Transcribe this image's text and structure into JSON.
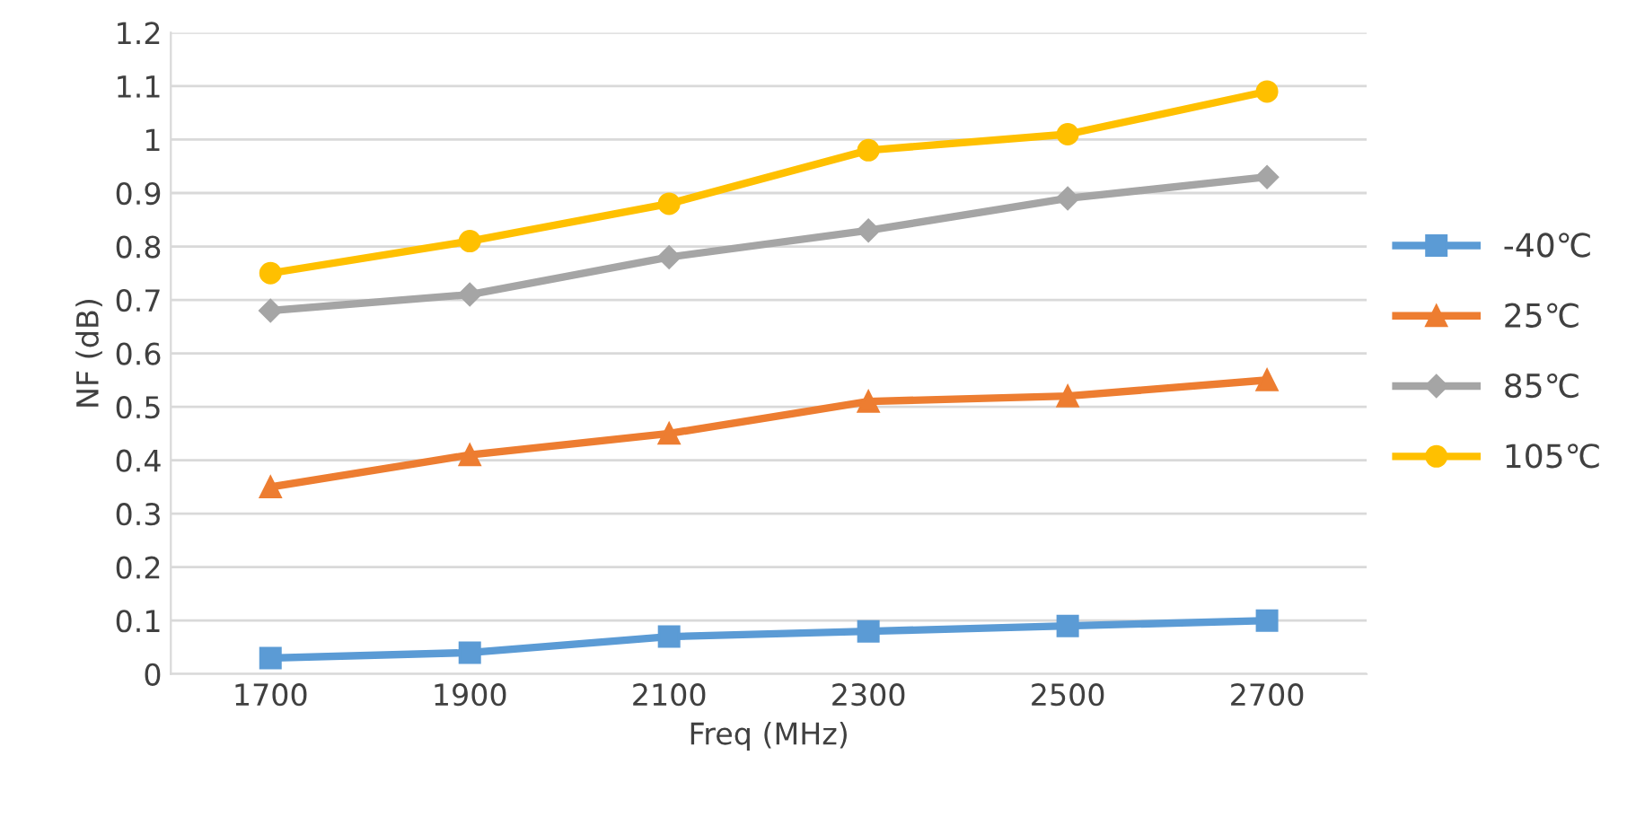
{
  "chart_data": {
    "type": "line",
    "xlabel": "Freq (MHz)",
    "ylabel": "NF (dB)",
    "categories": [
      "1700",
      "1900",
      "2100",
      "2300",
      "2500",
      "2700"
    ],
    "series": [
      {
        "name": "-40℃",
        "color": "#5b9bd5",
        "marker": "square",
        "values": [
          0.03,
          0.04,
          0.07,
          0.08,
          0.09,
          0.1
        ]
      },
      {
        "name": "25℃",
        "color": "#ed7d31",
        "marker": "triangle",
        "values": [
          0.35,
          0.41,
          0.45,
          0.51,
          0.52,
          0.55
        ]
      },
      {
        "name": "85℃",
        "color": "#a5a5a5",
        "marker": "diamond",
        "values": [
          0.68,
          0.71,
          0.78,
          0.83,
          0.89,
          0.93
        ]
      },
      {
        "name": "105℃",
        "color": "#ffc000",
        "marker": "circle",
        "values": [
          0.75,
          0.81,
          0.88,
          0.98,
          1.01,
          1.09
        ]
      }
    ],
    "ylim": [
      0,
      1.2
    ],
    "yticks": [
      0,
      0.1,
      0.2,
      0.3,
      0.4,
      0.5,
      0.6,
      0.7,
      0.8,
      0.9,
      1,
      1.1,
      1.2
    ],
    "grid": "y",
    "legend": "right",
    "line_style": "solid"
  }
}
